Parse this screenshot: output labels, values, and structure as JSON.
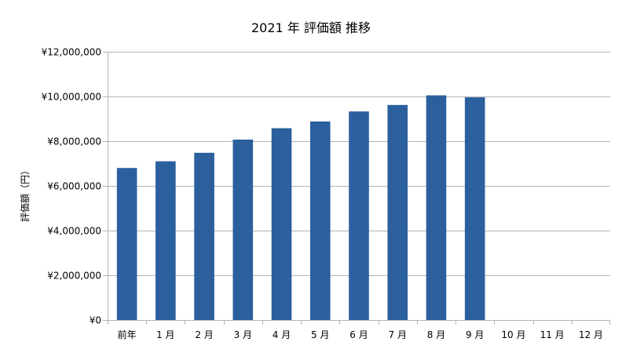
{
  "chart_data": {
    "type": "bar",
    "title": "2021 年 評価額 推移",
    "xlabel": "",
    "ylabel": "評価額（円）",
    "categories": [
      "前年",
      "1 月",
      "2 月",
      "3 月",
      "4 月",
      "5 月",
      "6 月",
      "7 月",
      "8 月",
      "9 月",
      "10 月",
      "11 月",
      "12 月"
    ],
    "series": [
      {
        "values": [
          6800000,
          7100000,
          7480000,
          8070000,
          8580000,
          8880000,
          9330000,
          9620000,
          10050000,
          9960000,
          null,
          null,
          null
        ]
      }
    ],
    "ylim": [
      0,
      12000000
    ],
    "yticks": [
      0,
      2000000,
      4000000,
      6000000,
      8000000,
      10000000,
      12000000
    ],
    "ytick_labels": [
      "¥0",
      "¥2,000,000",
      "¥4,000,000",
      "¥6,000,000",
      "¥8,000,000",
      "¥10,000,000",
      "¥12,000,000"
    ],
    "bar_color": "#2b5f9e",
    "grid": true,
    "legend": "none"
  }
}
